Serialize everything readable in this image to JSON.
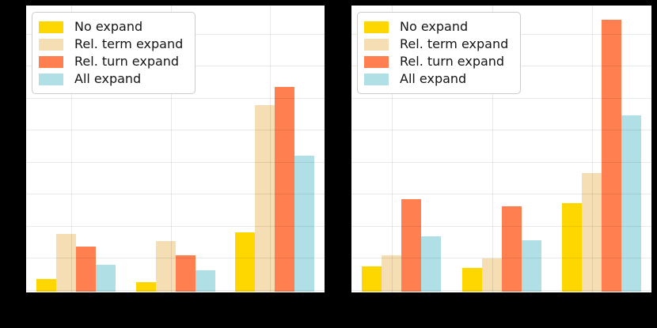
{
  "figure": {
    "background": "#000000",
    "plot_background": "#ffffff",
    "grid_color_hint": "light-gray"
  },
  "legend": {
    "items": [
      {
        "label": "No expand",
        "color": "#FFD700"
      },
      {
        "label": "Rel. term expand",
        "color": "#F5DEB3"
      },
      {
        "label": "Rel. turn expand",
        "color": "#FF7F50"
      },
      {
        "label": "All expand",
        "color": "#B0E0E6"
      }
    ]
  },
  "chart_data": [
    {
      "type": "bar",
      "title": "",
      "xlabel": "",
      "ylabel": "",
      "categories": [
        "",
        "",
        ""
      ],
      "series": [
        {
          "name": "No expand",
          "color": "#FFD700",
          "values": [
            0.39,
            0.3,
            1.86
          ]
        },
        {
          "name": "Rel. term expand",
          "color": "#F5DEB3",
          "values": [
            1.8,
            1.59,
            5.82
          ]
        },
        {
          "name": "Rel. turn expand",
          "color": "#FF7F50",
          "values": [
            1.41,
            1.14,
            6.38
          ]
        },
        {
          "name": "All expand",
          "color": "#B0E0E6",
          "values": [
            0.85,
            0.67,
            4.25
          ]
        }
      ],
      "ylim": [
        0,
        8.9
      ],
      "grid_step": 1,
      "grid": true,
      "legend_position": "upper left"
    },
    {
      "type": "bar",
      "title": "",
      "xlabel": "",
      "ylabel": "",
      "categories": [
        "",
        "",
        ""
      ],
      "series": [
        {
          "name": "No expand",
          "color": "#FFD700",
          "values": [
            0.78,
            0.75,
            2.77
          ]
        },
        {
          "name": "Rel. term expand",
          "color": "#F5DEB3",
          "values": [
            1.14,
            1.03,
            3.71
          ]
        },
        {
          "name": "Rel. turn expand",
          "color": "#FF7F50",
          "values": [
            2.88,
            2.67,
            8.47
          ]
        },
        {
          "name": "All expand",
          "color": "#B0E0E6",
          "values": [
            1.72,
            1.61,
            5.49
          ]
        }
      ],
      "ylim": [
        0,
        8.9
      ],
      "grid_step": 1,
      "grid": true,
      "legend_position": "upper left"
    }
  ]
}
